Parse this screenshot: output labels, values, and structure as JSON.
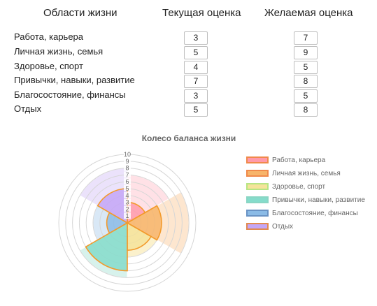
{
  "table": {
    "headers": {
      "area": "Области жизни",
      "current": "Текущая оценка",
      "desired": "Желаемая оценка"
    },
    "rows": [
      {
        "label": "Работа, карьера",
        "current": "3",
        "desired": "7"
      },
      {
        "label": "Личная жизнь, семья",
        "current": "5",
        "desired": "9"
      },
      {
        "label": "Здоровье, спорт",
        "current": "4",
        "desired": "5"
      },
      {
        "label": "Привычки, навыки, развитие",
        "current": "7",
        "desired": "8"
      },
      {
        "label": "Благосостояние, финансы",
        "current": "3",
        "desired": "5"
      },
      {
        "label": "Отдых",
        "current": "5",
        "desired": "8"
      }
    ]
  },
  "chart_data": {
    "type": "polar-area",
    "title": "Колесо баланса жизни",
    "categories": [
      "Работа, карьера",
      "Личная жизнь, семья",
      "Здоровье, спорт",
      "Привычки, навыки, развитие",
      "Благосостояние, финансы",
      "Отдых"
    ],
    "series": [
      {
        "values": [
          3,
          5,
          4,
          7,
          3,
          5
        ]
      },
      {
        "values": [
          7,
          9,
          5,
          8,
          5,
          8
        ]
      }
    ],
    "rlim": [
      0,
      10
    ],
    "ticks": [
      "1",
      "2",
      "3",
      "4",
      "5",
      "6",
      "7",
      "8",
      "9",
      "10"
    ],
    "legend_position": "right",
    "colors": {
      "fill": [
        "#ff9aaa",
        "#f7b46a",
        "#f5e39a",
        "#85dccb",
        "#8bbbe6",
        "#c4a6f6"
      ],
      "fill_light": [
        "#ffe1e6",
        "#fde6cf",
        "#fbf1cc",
        "#d7f2ec",
        "#d9e8f6",
        "#ebe2fb"
      ],
      "border": "#f39a2b",
      "legend_border": [
        "#f08a4b",
        "#f08a4b",
        "#b7e583",
        "#8ad6c4",
        "#6a93c4",
        "#e28a50"
      ]
    }
  }
}
